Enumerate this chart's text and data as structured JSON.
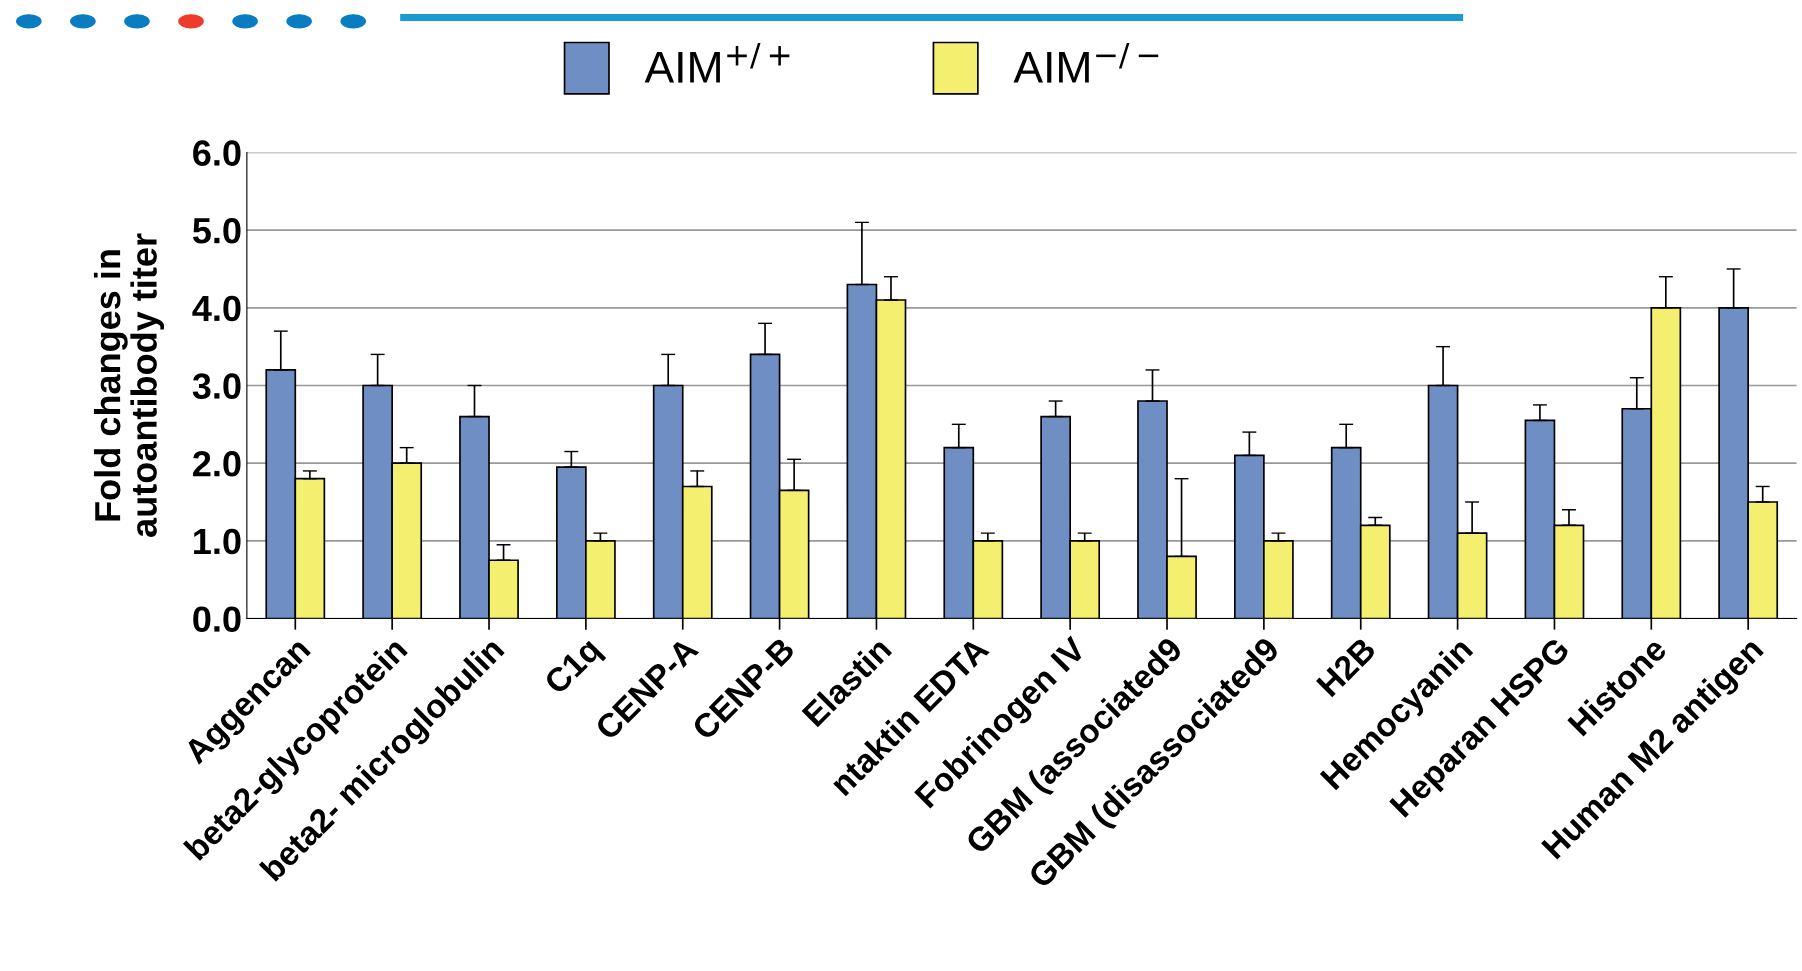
{
  "chart_data": {
    "type": "bar",
    "ylabel": "Fold changes in\nautoantibody titer",
    "categories": [
      "Aggencan",
      "beta2-glycoprotein",
      "beta2- microglobulin",
      "C1q",
      "CENP-A",
      "CENP-B",
      "Elastin",
      "ntaktin EDTA",
      "Fobrinogen IV",
      "GBM (associated9",
      "GBM (disassociated9",
      "H2B",
      "Hemocyanin",
      "Heparan HSPG",
      "Histone",
      "Human M2 antigen"
    ],
    "series": [
      {
        "name": "AIM$^{+/+}$",
        "color": "#6f8fc4",
        "values": [
          3.2,
          3.0,
          2.6,
          1.95,
          3.0,
          3.4,
          4.3,
          2.2,
          2.6,
          2.8,
          2.1,
          2.2,
          3.0,
          2.55,
          2.7,
          4.0
        ],
        "errors": [
          [
            3.2,
            3.7
          ],
          [
            3.0,
            3.4
          ],
          [
            2.6,
            3.0
          ],
          [
            1.95,
            2.15
          ],
          [
            3.0,
            3.4
          ],
          [
            3.4,
            3.8
          ],
          [
            4.3,
            5.1
          ],
          [
            2.2,
            2.5
          ],
          [
            2.6,
            2.8
          ],
          [
            2.8,
            3.2
          ],
          [
            2.1,
            2.4
          ],
          [
            2.2,
            2.5
          ],
          [
            3.0,
            3.5
          ],
          [
            2.55,
            2.75
          ],
          [
            2.7,
            3.1
          ],
          [
            4.0,
            4.5
          ]
        ]
      },
      {
        "name": "AIM$^{−/−}$",
        "color": "#f4ef6e",
        "values": [
          1.8,
          2.0,
          0.75,
          1.0,
          1.7,
          1.65,
          4.1,
          1.0,
          1.0,
          0.8,
          1.0,
          1.2,
          1.1,
          1.2,
          4.0,
          1.5
        ],
        "errors": [
          [
            1.8,
            1.9
          ],
          [
            2.0,
            2.2
          ],
          [
            0.75,
            0.95
          ],
          [
            1.0,
            1.1
          ],
          [
            1.7,
            1.9
          ],
          [
            1.65,
            2.05
          ],
          [
            4.1,
            4.4
          ],
          [
            1.0,
            1.1
          ],
          [
            1.0,
            1.1
          ],
          [
            0.8,
            1.8
          ],
          [
            1.0,
            1.1
          ],
          [
            1.2,
            1.3
          ],
          [
            1.1,
            1.5
          ],
          [
            1.2,
            1.4
          ],
          [
            4.0,
            4.4
          ],
          [
            1.5,
            1.7
          ]
        ]
      }
    ],
    "ylim": [
      0,
      6
    ],
    "yticks": [
      {
        "value": 0,
        "label": "0.0"
      },
      {
        "value": 1,
        "label": "1.0"
      },
      {
        "value": 2,
        "label": "2.0"
      },
      {
        "value": 3,
        "label": "3.0"
      },
      {
        "value": 4,
        "label": "4.0"
      },
      {
        "value": 5,
        "label": "5.0"
      },
      {
        "value": 6,
        "label": "6.0"
      }
    ],
    "grid": "y",
    "legend": "top"
  }
}
